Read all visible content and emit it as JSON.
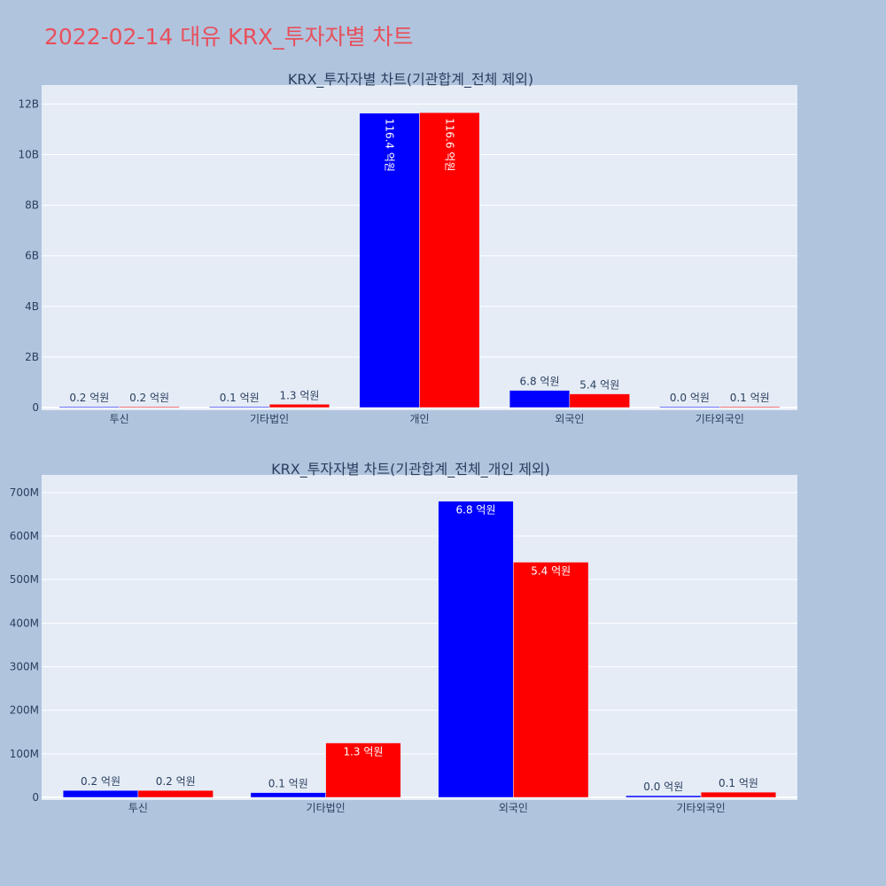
{
  "page": {
    "title": "2022-02-14 대유 KRX_투자자별 차트"
  },
  "colors": {
    "background": "#b0c4de",
    "plot_bg": "#e5ecf6",
    "title": "#e8505b",
    "series_1": "#0000ff",
    "series_2": "#ff0000",
    "text": "#2a3f5f"
  },
  "chart_data": [
    {
      "type": "bar",
      "title": "KRX_투자자별 차트(기관합계_전체 제외)",
      "categories": [
        "투신",
        "기타법인",
        "개인",
        "외국인",
        "기타외국인"
      ],
      "series": [
        {
          "color": "#0000ff",
          "values": [
            20000000,
            10000000,
            11640000000,
            680000000,
            4000000
          ],
          "labels": [
            "0.2 억원",
            "0.1 억원",
            "116.4 억원",
            "6.8 억원",
            "0.0 억원"
          ]
        },
        {
          "color": "#ff0000",
          "values": [
            20000000,
            130000000,
            11660000000,
            540000000,
            10000000
          ],
          "labels": [
            "0.2 억원",
            "1.3 억원",
            "116.6 억원",
            "5.4 억원",
            "0.1 억원"
          ]
        }
      ],
      "ylim": [
        0,
        12400000000
      ],
      "yticks": [
        0,
        2000000000,
        4000000000,
        6000000000,
        8000000000,
        10000000000,
        12000000000
      ],
      "ytick_labels": [
        "0",
        "2B",
        "4B",
        "6B",
        "8B",
        "10B",
        "12B"
      ],
      "grid": true,
      "xlabel": "",
      "ylabel": ""
    },
    {
      "type": "bar",
      "title": "KRX_투자자별 차트(기관합계_전체_개인 제외)",
      "categories": [
        "투신",
        "기타법인",
        "외국인",
        "기타외국인"
      ],
      "series": [
        {
          "color": "#0000ff",
          "values": [
            16000000,
            11000000,
            680000000,
            4000000
          ],
          "labels": [
            "0.2 억원",
            "0.1 억원",
            "6.8 억원",
            "0.0 억원"
          ]
        },
        {
          "color": "#ff0000",
          "values": [
            16000000,
            125000000,
            540000000,
            12000000
          ],
          "labels": [
            "0.2 억원",
            "1.3 억원",
            "5.4 억원",
            "0.1 억원"
          ]
        }
      ],
      "ylim": [
        0,
        720000000
      ],
      "yticks": [
        0,
        100000000,
        200000000,
        300000000,
        400000000,
        500000000,
        600000000,
        700000000
      ],
      "ytick_labels": [
        "0",
        "100M",
        "200M",
        "300M",
        "400M",
        "500M",
        "600M",
        "700M"
      ],
      "grid": true,
      "xlabel": "",
      "ylabel": ""
    }
  ]
}
